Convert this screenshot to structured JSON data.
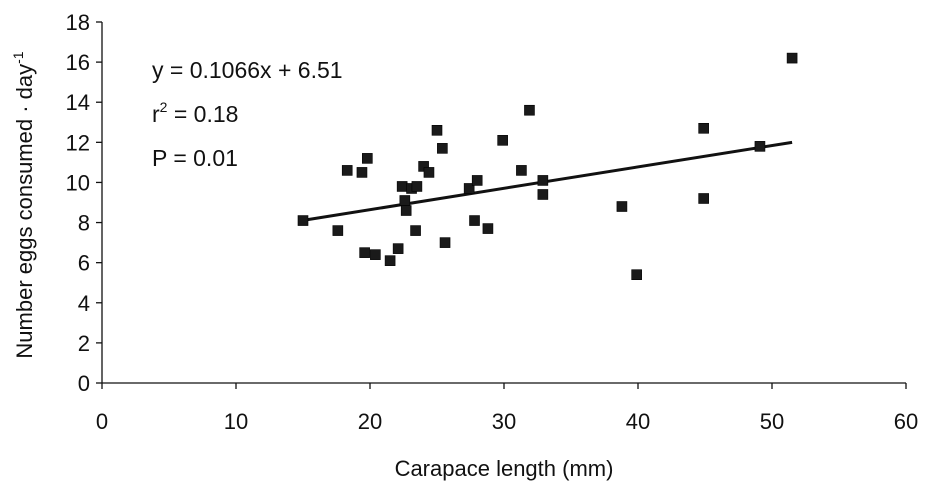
{
  "chart_data": {
    "type": "scatter",
    "title": "",
    "xlabel": "Carapace length (mm)",
    "ylabel": "Number eggs consumed · day",
    "ylabel_superscript": "-1",
    "xlim": [
      0,
      60
    ],
    "ylim": [
      0,
      18
    ],
    "xticks": [
      0,
      10,
      20,
      30,
      40,
      50,
      60
    ],
    "yticks": [
      0,
      2,
      4,
      6,
      8,
      10,
      12,
      14,
      16,
      18
    ],
    "grid": false,
    "legend": "none",
    "marker": "square",
    "marker_color": "#1a1a1a",
    "series": [
      {
        "points": [
          [
            15.0,
            8.1
          ],
          [
            17.6,
            7.6
          ],
          [
            18.3,
            10.6
          ],
          [
            19.4,
            10.5
          ],
          [
            19.8,
            11.2
          ],
          [
            19.6,
            6.5
          ],
          [
            20.4,
            6.4
          ],
          [
            21.5,
            6.1
          ],
          [
            22.1,
            6.7
          ],
          [
            22.4,
            9.8
          ],
          [
            22.6,
            9.1
          ],
          [
            22.7,
            8.6
          ],
          [
            23.1,
            9.7
          ],
          [
            23.5,
            9.8
          ],
          [
            23.4,
            7.6
          ],
          [
            24.0,
            10.8
          ],
          [
            24.4,
            10.5
          ],
          [
            25.0,
            12.6
          ],
          [
            25.4,
            11.7
          ],
          [
            25.6,
            7.0
          ],
          [
            27.4,
            9.7
          ],
          [
            27.8,
            8.1
          ],
          [
            28.0,
            10.1
          ],
          [
            28.8,
            7.7
          ],
          [
            29.9,
            12.1
          ],
          [
            31.3,
            10.6
          ],
          [
            31.9,
            13.6
          ],
          [
            32.9,
            10.1
          ],
          [
            32.9,
            9.4
          ],
          [
            38.8,
            8.8
          ],
          [
            39.9,
            5.4
          ],
          [
            44.9,
            12.7
          ],
          [
            44.9,
            9.2
          ],
          [
            49.1,
            11.8
          ],
          [
            51.5,
            16.2
          ]
        ]
      }
    ],
    "trendline": {
      "slope": 0.1066,
      "intercept": 6.51,
      "x_start": 15.0,
      "x_end": 51.5
    },
    "annotations": {
      "equation": "y = 0.1066x + 6.51",
      "r2_prefix": "r",
      "r2_superscript": "2",
      "r2_value": " = 0.18",
      "p_value": "P = 0.01"
    }
  }
}
